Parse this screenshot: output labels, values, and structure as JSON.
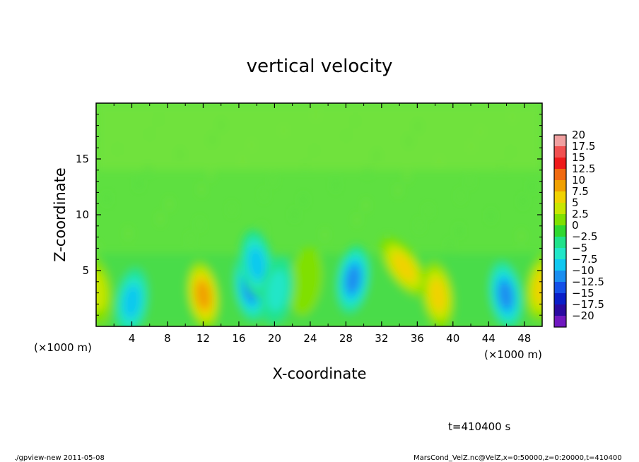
{
  "chart_data": {
    "type": "heatmap",
    "title": "vertical velocity",
    "xlabel": "X-coordinate",
    "ylabel": "Z-coordinate",
    "x_scale_note": "(×1000 m)",
    "y_scale_note": "(×1000 m)",
    "xlim": [
      0,
      50
    ],
    "ylim": [
      0,
      20
    ],
    "x_ticks": [
      4,
      8,
      12,
      16,
      20,
      24,
      28,
      32,
      36,
      40,
      44,
      48
    ],
    "y_ticks": [
      5,
      10,
      15
    ],
    "colorbar": {
      "levels": [
        20,
        17.5,
        15,
        12.5,
        10,
        7.5,
        5,
        2.5,
        0,
        -2.5,
        -5,
        -7.5,
        -10,
        -12.5,
        -15,
        -17.5,
        -20
      ],
      "labels": [
        "20",
        "17.5",
        "15",
        "12.5",
        "10",
        "7.5",
        "5",
        "2.5",
        "0",
        "−2.5",
        "−5",
        "−7.5",
        "−10",
        "−12.5",
        "−15",
        "−17.5",
        "−20"
      ],
      "colors": [
        "#f0a0a0",
        "#f05050",
        "#ee1a1a",
        "#f06a10",
        "#f0a000",
        "#f0d200",
        "#c8e600",
        "#80e000",
        "#30d830",
        "#20e28a",
        "#22e6c8",
        "#10c8f0",
        "#1a8ef0",
        "#1450e8",
        "#0a1ec8",
        "#2a0aa0",
        "#7018c0"
      ]
    },
    "features": [
      {
        "type": "updraft",
        "x": 12,
        "z": 2.8,
        "peak": 10
      },
      {
        "type": "updraft",
        "x": 34.5,
        "z": 5.3,
        "peak": 7.5
      },
      {
        "type": "updraft",
        "x": 38.3,
        "z": 2.8,
        "peak": 7.5
      },
      {
        "type": "updraft",
        "x": 50,
        "z": 3.5,
        "peak": 7.5
      },
      {
        "type": "updraft",
        "x": 0,
        "z": 3.2,
        "peak": 5
      },
      {
        "type": "updraft",
        "x": 23.5,
        "z": 4,
        "peak": 2.5
      },
      {
        "type": "downdraft",
        "x": 17.3,
        "z": 3.5,
        "peak": -10
      },
      {
        "type": "downdraft",
        "x": 28.8,
        "z": 4.2,
        "peak": -10
      },
      {
        "type": "downdraft",
        "x": 45.9,
        "z": 2.8,
        "peak": -10
      },
      {
        "type": "downdraft",
        "x": 4,
        "z": 2.2,
        "peak": -7.5
      },
      {
        "type": "downdraft",
        "x": 18,
        "z": 5.6,
        "peak": -7.5
      },
      {
        "type": "downdraft",
        "x": 20.3,
        "z": 3.2,
        "peak": -5
      }
    ]
  },
  "time_label": "t=410400 s",
  "footer_left": "./gpview-new   2011-05-08",
  "footer_right": "MarsCond_VelZ.nc@VelZ,x=0:50000,z=0:20000,t=410400"
}
